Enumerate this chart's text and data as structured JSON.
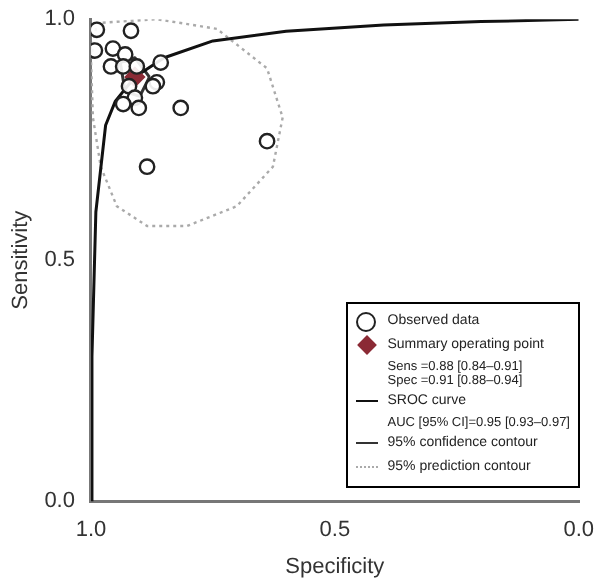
{
  "chart_data": {
    "type": "scatter",
    "xlabel": "Specificity",
    "ylabel": "Sensitivity",
    "xlim": [
      1.0,
      0.0
    ],
    "xticks": [
      {
        "value": 1,
        "label": "1.0"
      },
      {
        "value": 0.5,
        "label": "0.5"
      },
      {
        "value": 0,
        "label": "0.0"
      }
    ],
    "ylim": [
      0.0,
      1.0
    ],
    "yticks": [
      {
        "value": 0,
        "label": "0.0"
      },
      {
        "value": 0.5,
        "label": "0.5"
      },
      {
        "value": 1,
        "label": "1.0"
      }
    ],
    "grid": false,
    "legend": "bottom right",
    "annotations": [
      "Sens =0.88 [0.84–0.91]",
      "Spec =0.91 [0.88–0.94]",
      "AUC [95% CI]=0.95 [0.93–0.97]"
    ],
    "series": [
      {
        "name": "Observed data",
        "marker": "circle",
        "color": "#222222",
        "x": [
          0.988,
          0.918,
          0.992,
          0.955,
          0.93,
          0.959,
          0.934,
          0.906,
          0.857,
          0.865,
          0.873,
          0.922,
          0.91,
          0.934,
          0.902,
          0.816,
          0.639,
          0.885
        ],
        "values": [
          0.978,
          0.976,
          0.935,
          0.939,
          0.927,
          0.902,
          0.902,
          0.902,
          0.91,
          0.869,
          0.861,
          0.861,
          0.837,
          0.824,
          0.816,
          0.816,
          0.747,
          0.694
        ]
      },
      {
        "name": "Summary operating point",
        "type": "scatter",
        "marker": "diamond",
        "color": "#8b2a35",
        "x": [
          0.91
        ],
        "values": [
          0.88
        ]
      },
      {
        "name": "SROC curve",
        "type": "line",
        "marker": "none",
        "line_style": "solid",
        "color": "#111111",
        "x": [
          1.0,
          0.998,
          0.99,
          0.97,
          0.95,
          0.91,
          0.85,
          0.75,
          0.6,
          0.4,
          0.2,
          0.0
        ],
        "values": [
          0.0,
          0.3,
          0.6,
          0.78,
          0.83,
          0.88,
          0.92,
          0.955,
          0.975,
          0.988,
          0.995,
          1.0
        ]
      },
      {
        "name": "95% confidence contour",
        "type": "line",
        "marker": "none",
        "line_style": "solid",
        "color": "#333333",
        "x": [
          0.94,
          0.91,
          0.88
        ],
        "values": [
          0.91,
          0.92,
          0.88
        ]
      },
      {
        "type": "line",
        "marker": "none",
        "line_style": "solid",
        "color": "#333333",
        "x": [
          0.88,
          0.9,
          0.93,
          0.94
        ],
        "values": [
          0.88,
          0.84,
          0.85,
          0.91
        ]
      },
      {
        "name": "95% prediction contour",
        "type": "line",
        "marker": "none",
        "line_style": "dotted",
        "color": "#aaaaaa",
        "x": [
          1.0,
          0.988,
          0.865,
          0.742,
          0.639,
          0.607
        ],
        "values": [
          0.918,
          0.992,
          1.0,
          0.98,
          0.898,
          0.796
        ]
      },
      {
        "type": "line",
        "marker": "none",
        "line_style": "dotted",
        "color": "#aaaaaa",
        "x": [
          0.607,
          0.627,
          0.701,
          0.803,
          0.885,
          0.947,
          0.98,
          0.996,
          1.0
        ],
        "values": [
          0.796,
          0.694,
          0.612,
          0.571,
          0.571,
          0.612,
          0.694,
          0.796,
          0.918
        ]
      }
    ]
  }
}
